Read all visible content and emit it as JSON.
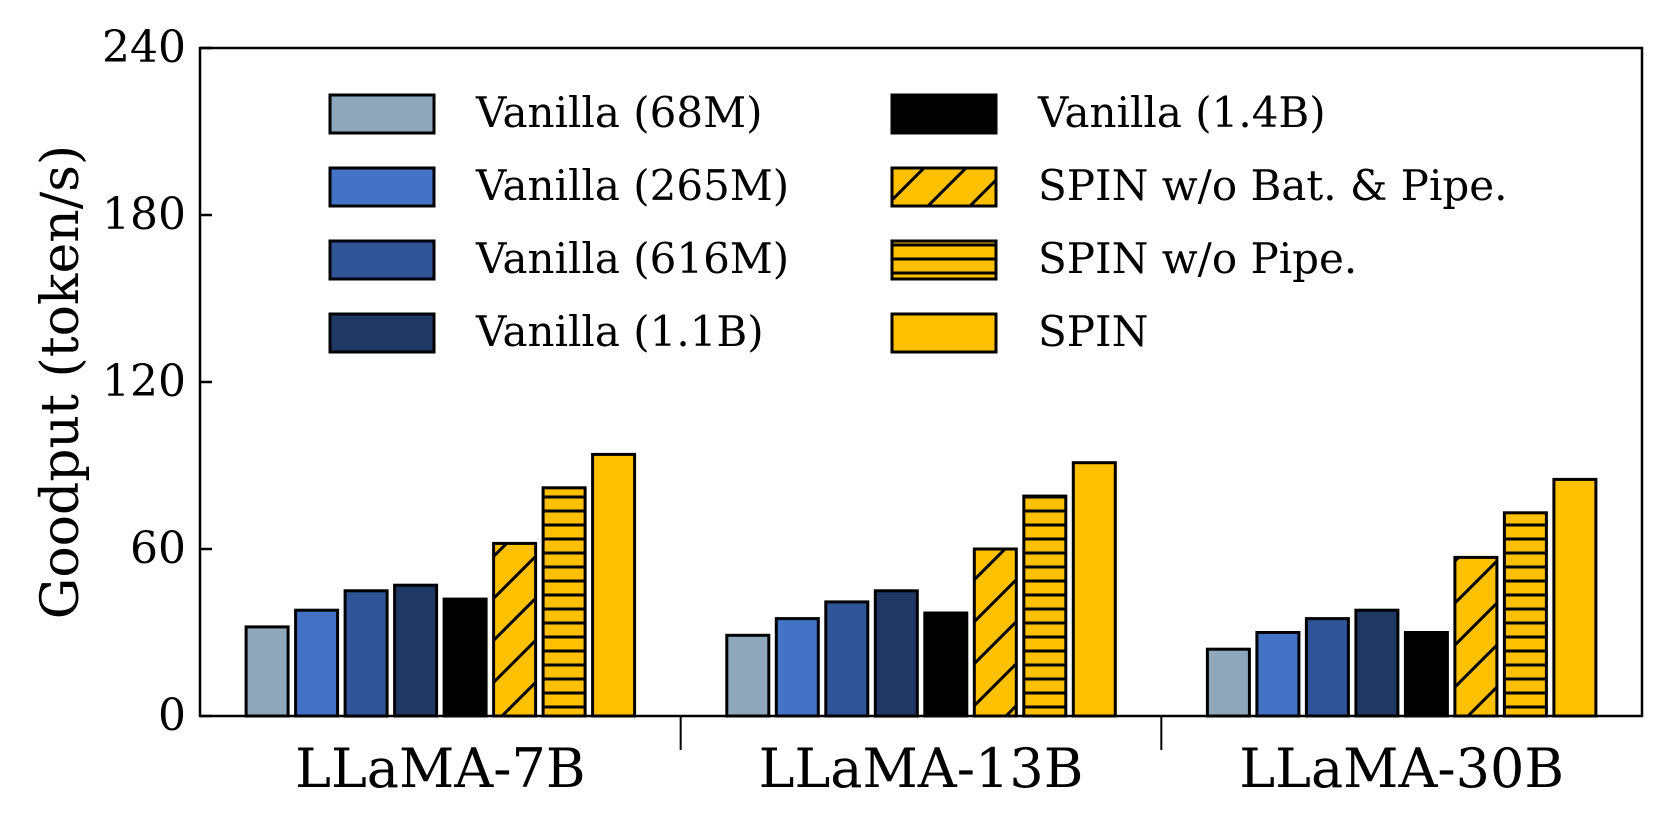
{
  "chart_data": {
    "type": "bar",
    "title": "",
    "xlabel": "",
    "ylabel": "Goodput (token/s)",
    "ylim": [
      0,
      240
    ],
    "yticks": [
      0,
      60,
      120,
      180,
      240
    ],
    "categories": [
      "LLaMA-7B",
      "LLaMA-13B",
      "LLaMA-30B"
    ],
    "legend_position": "top",
    "series": [
      {
        "name": "Vanilla (68M)",
        "color": "#8fa7ba",
        "pattern": "none",
        "values": [
          32,
          29,
          24
        ]
      },
      {
        "name": "Vanilla (265M)",
        "color": "#4472c4",
        "pattern": "none",
        "values": [
          38,
          35,
          30
        ]
      },
      {
        "name": "Vanilla (616M)",
        "color": "#2f5597",
        "pattern": "none",
        "values": [
          45,
          41,
          35
        ]
      },
      {
        "name": "Vanilla (1.1B)",
        "color": "#203864",
        "pattern": "none",
        "values": [
          47,
          45,
          38
        ]
      },
      {
        "name": "Vanilla (1.4B)",
        "color": "#000000",
        "pattern": "none",
        "values": [
          42,
          37,
          30
        ]
      },
      {
        "name": "SPIN w/o Bat. & Pipe.",
        "color": "#ffc000",
        "pattern": "diagonal",
        "values": [
          62,
          60,
          57
        ]
      },
      {
        "name": "SPIN w/o Pipe.",
        "color": "#ffc000",
        "pattern": "horizontal",
        "values": [
          82,
          79,
          73
        ]
      },
      {
        "name": "SPIN",
        "color": "#ffc000",
        "pattern": "none",
        "values": [
          94,
          91,
          85
        ]
      }
    ]
  }
}
